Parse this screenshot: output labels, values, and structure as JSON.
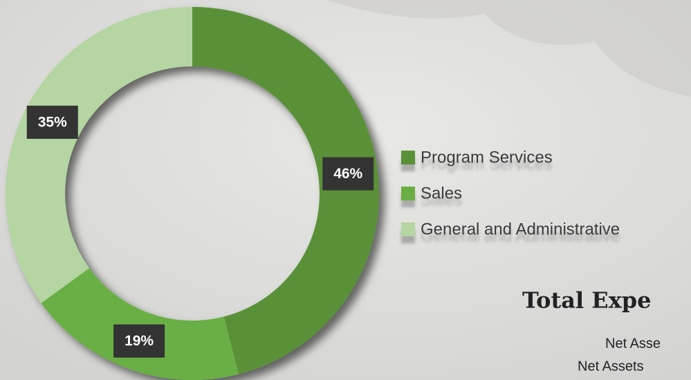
{
  "chart_data": {
    "type": "donut",
    "categories": [
      "Program Services",
      "Sales",
      "General and Administrative"
    ],
    "values": [
      46,
      19,
      35
    ],
    "value_labels": [
      "46%",
      "19%",
      "35%"
    ],
    "colors": [
      "#5a9137",
      "#6aaf45",
      "#b5d5a2"
    ],
    "legend": "right"
  },
  "heading": "Total Expe",
  "lines": [
    "Net Asse",
    "Net Assets"
  ]
}
